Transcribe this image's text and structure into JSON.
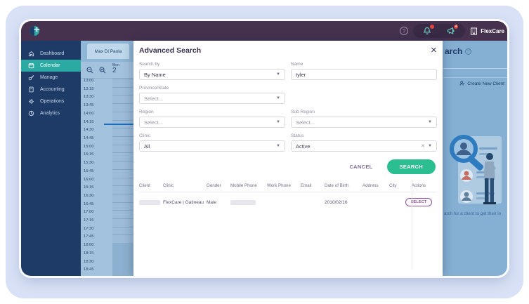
{
  "header": {
    "brand_label": "FlexCare",
    "help_icon": "help-circle-icon",
    "bell_badge": "",
    "announce_badge": "4"
  },
  "sidebar": {
    "items": [
      {
        "label": "Dashboard",
        "icon": "home-icon",
        "active": false
      },
      {
        "label": "Calendar",
        "icon": "calendar-icon",
        "active": true
      },
      {
        "label": "Manage",
        "icon": "key-icon",
        "active": false
      },
      {
        "label": "Accounting",
        "icon": "calculator-icon",
        "active": false
      },
      {
        "label": "Operations",
        "icon": "gear-icon",
        "active": false
      },
      {
        "label": "Analytics",
        "icon": "pie-chart-icon",
        "active": false
      }
    ]
  },
  "calendar": {
    "tab": "Max Di Paola",
    "day_abbr": "Mon",
    "day_num": "2",
    "times": [
      "13:00",
      "13:15",
      "13:30",
      "13:45",
      "14:00",
      "14:15",
      "14:30",
      "14:45",
      "15:00",
      "15:15",
      "15:30",
      "15:45",
      "16:00",
      "16:15",
      "16:30",
      "16:45",
      "17:00",
      "17:15",
      "17:30",
      "17:45",
      "18:00",
      "18:15",
      "18:30",
      "18:45"
    ]
  },
  "modal": {
    "title": "Advanced Search",
    "fields": {
      "search_by": {
        "label": "Search by",
        "value": "By Name"
      },
      "name": {
        "label": "Name",
        "value": "tyler"
      },
      "province": {
        "label": "Province/State",
        "value": "Select..."
      },
      "region": {
        "label": "Region",
        "value": "Select..."
      },
      "sub_region": {
        "label": "Sub Region",
        "value": "Select..."
      },
      "clinic": {
        "label": "Clinic",
        "value": "All"
      },
      "status": {
        "label": "Status",
        "value": "Active"
      }
    },
    "cancel_label": "CANCEL",
    "search_label": "SEARCH",
    "table": {
      "columns": [
        "Client",
        "Clinic",
        "Gender",
        "Mobile Phone",
        "Work Phone",
        "Email",
        "Date of Birth",
        "Address",
        "City",
        "Actions"
      ],
      "row": {
        "client_redacted": true,
        "clinic": "FlexCare | Gatineau",
        "gender": "Male",
        "mobile_redacted": true,
        "work_phone": "",
        "email": "",
        "dob": "2010/02/16",
        "address": "",
        "city": "",
        "action_label": "SELECT"
      }
    }
  },
  "backdrop": {
    "page_title_fragment": "arch",
    "create_new_client": "Create New Client",
    "caption_fragment": "arch for a client to get their in"
  },
  "colors": {
    "plum_header": "#46324F",
    "navy_sidebar": "#1E3A66",
    "teal_active": "#2BAAA4",
    "green_search": "#2ABE90",
    "purple_select": "#954FA5",
    "badge_red": "#E5433F",
    "calendar_bg": "#A3C2DD",
    "now_line": "#1B6FC0"
  }
}
